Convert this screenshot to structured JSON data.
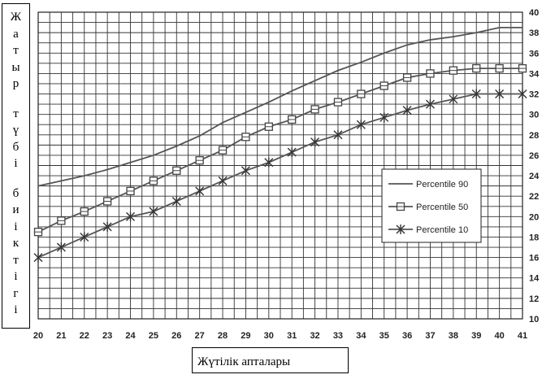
{
  "ylabel": "Жатыр түбі биіктігі",
  "xlabel": "Жүтілік апталары",
  "chart_data": {
    "type": "line",
    "title": "",
    "xlabel": "Жүтілік апталары",
    "ylabel": "Жатыр түбі биіктігі",
    "x": [
      20,
      21,
      22,
      23,
      24,
      25,
      26,
      27,
      28,
      29,
      30,
      31,
      32,
      33,
      34,
      35,
      36,
      37,
      38,
      39,
      40,
      41
    ],
    "xlim": [
      20,
      41
    ],
    "ylim": [
      10,
      40
    ],
    "yticks": [
      10,
      12,
      14,
      16,
      18,
      20,
      22,
      24,
      26,
      28,
      30,
      32,
      34,
      36,
      38,
      40
    ],
    "y_axis_side": "right",
    "grid": true,
    "legend": "right-middle",
    "series": [
      {
        "name": "Percentile 90",
        "marker": "none",
        "values": [
          23,
          23.5,
          24,
          24.6,
          25.3,
          26,
          26.9,
          27.9,
          29.2,
          30.2,
          31.2,
          32.3,
          33.3,
          34.3,
          35.1,
          36,
          36.8,
          37.3,
          37.6,
          38,
          38.5,
          38.5
        ]
      },
      {
        "name": "Percentile 50",
        "marker": "square",
        "values": [
          18.5,
          19.6,
          20.5,
          21.5,
          22.5,
          23.5,
          24.5,
          25.5,
          26.5,
          27.8,
          28.8,
          29.5,
          30.5,
          31.2,
          32,
          32.8,
          33.6,
          34,
          34.3,
          34.5,
          34.5,
          34.5
        ]
      },
      {
        "name": "Percentile 10",
        "marker": "asterisk",
        "values": [
          16,
          17,
          18,
          19,
          20,
          20.5,
          21.5,
          22.5,
          23.5,
          24.5,
          25.3,
          26.3,
          27.3,
          28,
          29,
          29.7,
          30.4,
          31,
          31.5,
          32,
          32,
          32
        ]
      }
    ]
  }
}
